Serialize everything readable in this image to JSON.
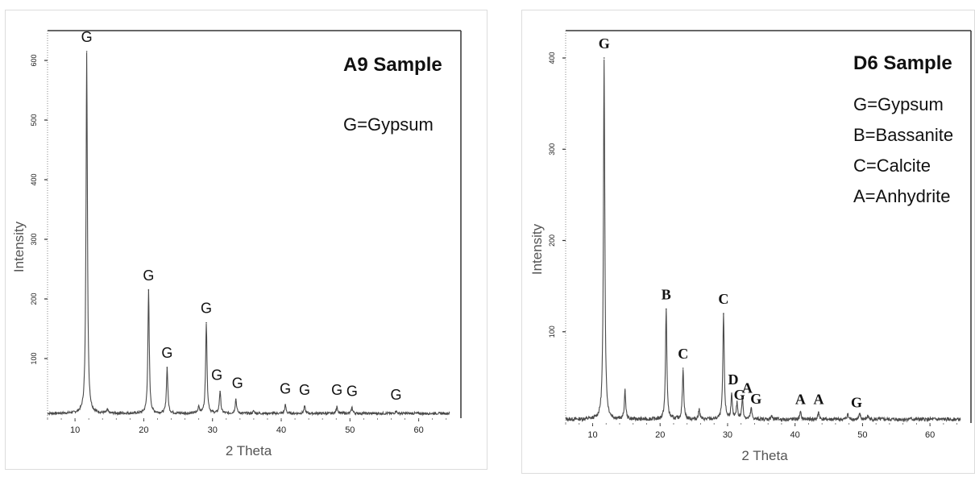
{
  "chart_data": [
    {
      "type": "line",
      "title": "A9 Sample",
      "legend": [
        "G=Gypsum"
      ],
      "xlabel": "2 Theta",
      "ylabel": "Intensity",
      "xlim": [
        5,
        65
      ],
      "ylim": [
        0,
        650
      ],
      "xticks": [
        10,
        20,
        30,
        40,
        50,
        60
      ],
      "yticks": [
        100,
        200,
        300,
        400,
        500,
        600
      ],
      "background_level": 8,
      "peaks": [
        {
          "x": 11.7,
          "y": 615,
          "label": "G"
        },
        {
          "x": 14.7,
          "y": 14,
          "label": ""
        },
        {
          "x": 20.7,
          "y": 215,
          "label": "G"
        },
        {
          "x": 23.4,
          "y": 85,
          "label": "G"
        },
        {
          "x": 28.0,
          "y": 20,
          "label": ""
        },
        {
          "x": 29.1,
          "y": 160,
          "label": "G"
        },
        {
          "x": 31.1,
          "y": 45,
          "label": "G"
        },
        {
          "x": 33.4,
          "y": 32,
          "label": "G"
        },
        {
          "x": 36.0,
          "y": 12,
          "label": ""
        },
        {
          "x": 40.6,
          "y": 22,
          "label": "G"
        },
        {
          "x": 43.4,
          "y": 20,
          "label": "G"
        },
        {
          "x": 48.1,
          "y": 20,
          "label": "G"
        },
        {
          "x": 50.3,
          "y": 18,
          "label": "G"
        },
        {
          "x": 56.7,
          "y": 12,
          "label": "G"
        }
      ]
    },
    {
      "type": "line",
      "title": "D6 Sample",
      "legend": [
        "G=Gypsum",
        "B=Bassanite",
        "C=Calcite",
        "A=Anhydrite"
      ],
      "xlabel": "2 Theta",
      "ylabel": "Intensity",
      "xlim": [
        5,
        65
      ],
      "ylim": [
        0,
        410
      ],
      "xticks": [
        10,
        20,
        30,
        40,
        50,
        60
      ],
      "yticks": [
        100,
        200,
        300,
        400
      ],
      "background_level": 4,
      "peaks": [
        {
          "x": 11.7,
          "y": 400,
          "label": "G"
        },
        {
          "x": 14.8,
          "y": 35,
          "label": ""
        },
        {
          "x": 20.9,
          "y": 125,
          "label": "B"
        },
        {
          "x": 23.4,
          "y": 60,
          "label": "C"
        },
        {
          "x": 25.8,
          "y": 15,
          "label": ""
        },
        {
          "x": 29.4,
          "y": 120,
          "label": "C"
        },
        {
          "x": 30.6,
          "y": 30,
          "label": "D"
        },
        {
          "x": 31.4,
          "y": 22,
          "label": "G"
        },
        {
          "x": 32.2,
          "y": 28,
          "label": "A"
        },
        {
          "x": 33.5,
          "y": 16,
          "label": "G"
        },
        {
          "x": 36.5,
          "y": 8,
          "label": ""
        },
        {
          "x": 40.8,
          "y": 12,
          "label": "A"
        },
        {
          "x": 43.5,
          "y": 12,
          "label": "A"
        },
        {
          "x": 47.8,
          "y": 10,
          "label": ""
        },
        {
          "x": 49.6,
          "y": 10,
          "label": "G"
        },
        {
          "x": 50.8,
          "y": 8,
          "label": ""
        },
        {
          "x": 57.0,
          "y": 5,
          "label": ""
        }
      ]
    }
  ]
}
